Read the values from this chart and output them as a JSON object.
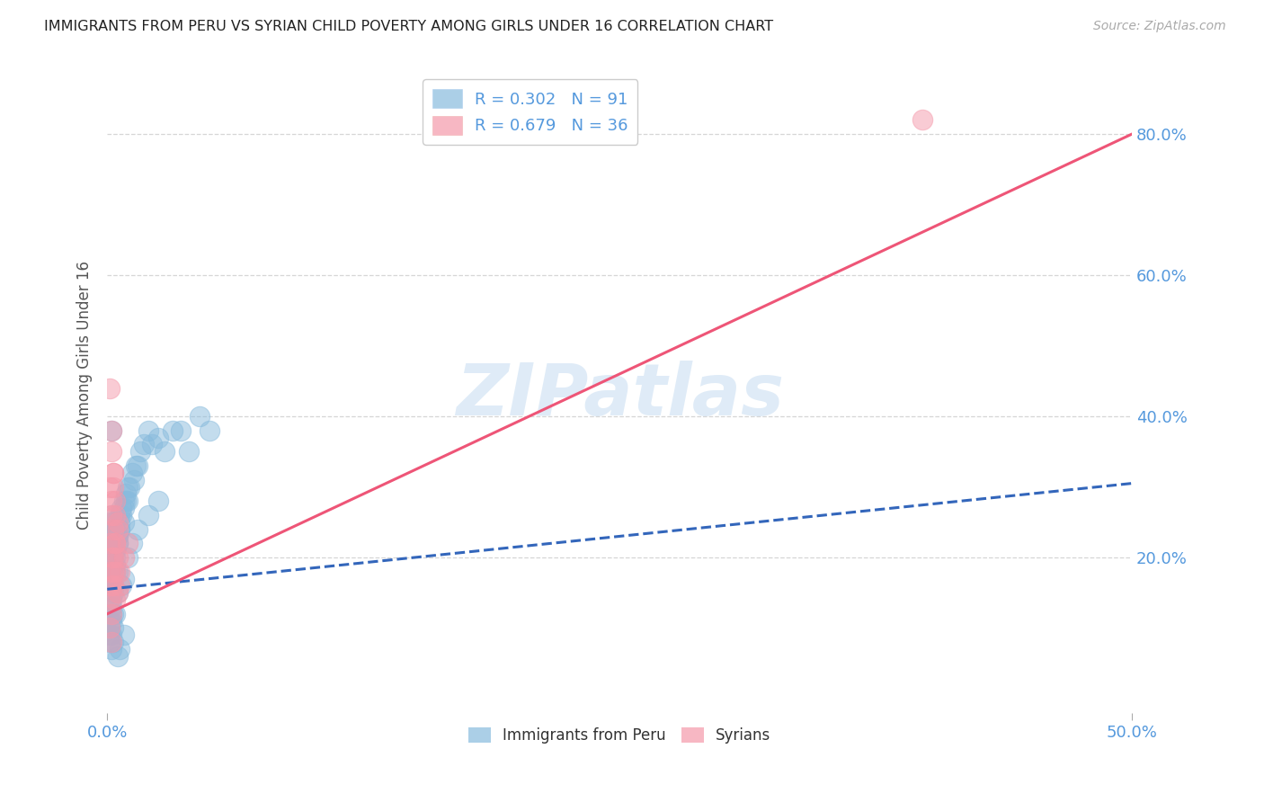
{
  "title": "IMMIGRANTS FROM PERU VS SYRIAN CHILD POVERTY AMONG GIRLS UNDER 16 CORRELATION CHART",
  "source": "Source: ZipAtlas.com",
  "ylabel": "Child Poverty Among Girls Under 16",
  "xlim": [
    0.0,
    0.5
  ],
  "ylim": [
    -0.02,
    0.88
  ],
  "xtick_vals": [
    0.0,
    0.5
  ],
  "xtick_labels": [
    "0.0%",
    "50.0%"
  ],
  "ytick_vals": [
    0.2,
    0.4,
    0.6,
    0.8
  ],
  "ytick_labels": [
    "20.0%",
    "40.0%",
    "60.0%",
    "80.0%"
  ],
  "watermark": "ZIPatlas",
  "legend_peru_R": "0.302",
  "legend_peru_N": "91",
  "legend_syria_R": "0.679",
  "legend_syria_N": "36",
  "peru_color": "#88bbdd",
  "syria_color": "#f599aa",
  "peru_line_color": "#3366bb",
  "syria_line_color": "#ee5577",
  "grid_color": "#cccccc",
  "bg_color": "#ffffff",
  "title_color": "#222222",
  "tick_color": "#5599dd",
  "ylabel_color": "#555555",
  "peru_trend_x": [
    0.0,
    0.5
  ],
  "peru_trend_y": [
    0.155,
    0.305
  ],
  "syria_trend_x": [
    0.0,
    0.5
  ],
  "syria_trend_y": [
    0.12,
    0.8
  ],
  "peru_x": [
    0.001,
    0.002,
    0.001,
    0.003,
    0.002,
    0.001,
    0.004,
    0.003,
    0.002,
    0.001,
    0.005,
    0.004,
    0.003,
    0.002,
    0.001,
    0.006,
    0.005,
    0.004,
    0.003,
    0.002,
    0.007,
    0.006,
    0.005,
    0.004,
    0.008,
    0.007,
    0.006,
    0.005,
    0.009,
    0.008,
    0.01,
    0.009,
    0.008,
    0.012,
    0.011,
    0.01,
    0.014,
    0.013,
    0.016,
    0.015,
    0.018,
    0.02,
    0.022,
    0.025,
    0.028,
    0.032,
    0.036,
    0.04,
    0.045,
    0.05,
    0.001,
    0.002,
    0.001,
    0.003,
    0.002,
    0.001,
    0.001,
    0.002,
    0.003,
    0.002,
    0.001,
    0.002,
    0.003,
    0.004,
    0.005,
    0.003,
    0.004,
    0.002,
    0.001,
    0.006,
    0.005,
    0.007,
    0.008,
    0.004,
    0.003,
    0.01,
    0.012,
    0.015,
    0.02,
    0.025,
    0.001,
    0.002,
    0.001,
    0.003,
    0.002,
    0.004,
    0.003,
    0.005,
    0.006,
    0.008,
    0.002
  ],
  "peru_y": [
    0.22,
    0.2,
    0.25,
    0.23,
    0.19,
    0.21,
    0.24,
    0.22,
    0.26,
    0.18,
    0.23,
    0.21,
    0.25,
    0.2,
    0.17,
    0.26,
    0.22,
    0.24,
    0.19,
    0.21,
    0.27,
    0.25,
    0.23,
    0.2,
    0.28,
    0.26,
    0.24,
    0.22,
    0.29,
    0.27,
    0.3,
    0.28,
    0.25,
    0.32,
    0.3,
    0.28,
    0.33,
    0.31,
    0.35,
    0.33,
    0.36,
    0.38,
    0.36,
    0.37,
    0.35,
    0.38,
    0.38,
    0.35,
    0.4,
    0.38,
    0.14,
    0.13,
    0.16,
    0.15,
    0.12,
    0.1,
    0.11,
    0.09,
    0.12,
    0.14,
    0.18,
    0.17,
    0.16,
    0.19,
    0.18,
    0.2,
    0.21,
    0.22,
    0.23,
    0.24,
    0.15,
    0.16,
    0.17,
    0.18,
    0.19,
    0.2,
    0.22,
    0.24,
    0.26,
    0.28,
    0.08,
    0.07,
    0.09,
    0.1,
    0.11,
    0.12,
    0.08,
    0.06,
    0.07,
    0.09,
    0.38
  ],
  "syria_x": [
    0.001,
    0.002,
    0.001,
    0.003,
    0.002,
    0.001,
    0.004,
    0.003,
    0.005,
    0.002,
    0.001,
    0.003,
    0.002,
    0.004,
    0.001,
    0.003,
    0.005,
    0.002,
    0.004,
    0.006,
    0.001,
    0.002,
    0.003,
    0.004,
    0.002,
    0.003,
    0.005,
    0.004,
    0.006,
    0.005,
    0.002,
    0.003,
    0.004,
    0.008,
    0.01,
    0.398
  ],
  "syria_y": [
    0.22,
    0.2,
    0.18,
    0.24,
    0.28,
    0.3,
    0.26,
    0.32,
    0.25,
    0.35,
    0.14,
    0.16,
    0.12,
    0.18,
    0.1,
    0.2,
    0.15,
    0.08,
    0.22,
    0.16,
    0.44,
    0.38,
    0.3,
    0.22,
    0.26,
    0.32,
    0.2,
    0.28,
    0.18,
    0.24,
    0.16,
    0.18,
    0.14,
    0.2,
    0.22,
    0.82
  ]
}
